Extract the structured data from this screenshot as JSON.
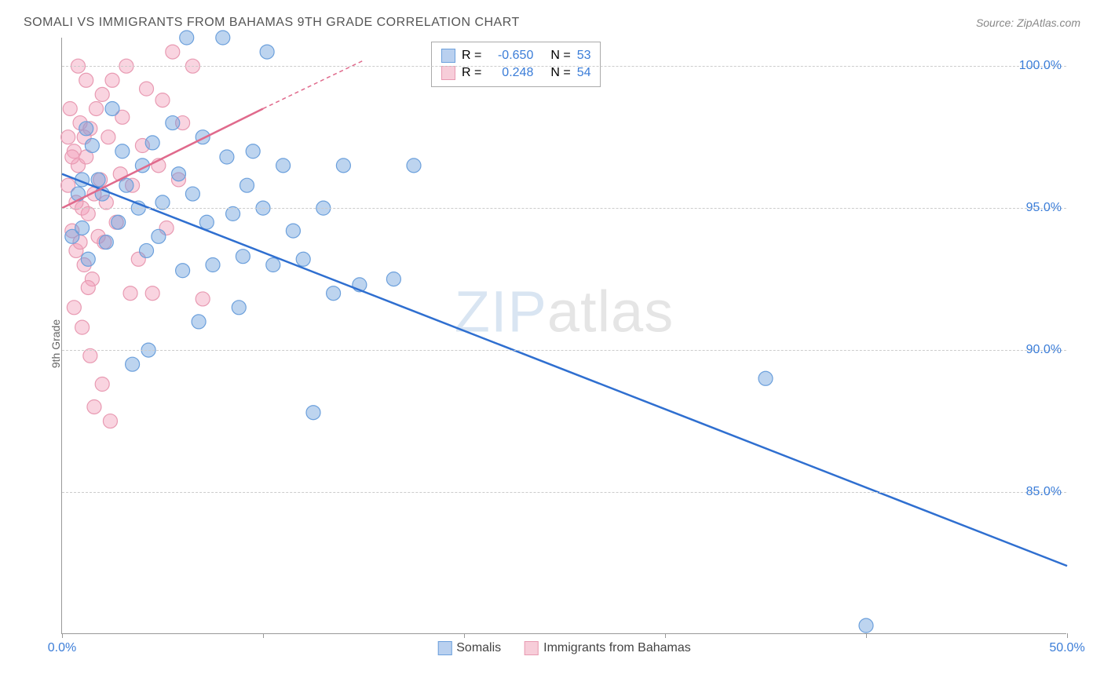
{
  "title": "SOMALI VS IMMIGRANTS FROM BAHAMAS 9TH GRADE CORRELATION CHART",
  "source": "Source: ZipAtlas.com",
  "ylabel": "9th Grade",
  "watermark": {
    "bold": "ZIP",
    "thin": "atlas"
  },
  "chart": {
    "type": "scatter+regression",
    "xlim": [
      0,
      50
    ],
    "ylim": [
      80,
      101
    ],
    "xticks": [
      0,
      10,
      20,
      30,
      40,
      50
    ],
    "xticks_labeled": {
      "0": "0.0%",
      "50": "50.0%"
    },
    "yticks": [
      85,
      90,
      95,
      100
    ],
    "ytick_labels": [
      "85.0%",
      "90.0%",
      "95.0%",
      "100.0%"
    ],
    "grid_color": "#cccccc",
    "axis_color": "#999999",
    "background": "#ffffff",
    "label_color": "#3b7dd8",
    "series": [
      {
        "name": "Somalis",
        "color_fill": "rgba(108,160,220,0.45)",
        "color_stroke": "#6ca0dc",
        "swatch_fill": "#b9d0ef",
        "swatch_border": "#6ca0dc",
        "line_color": "#2f6fd0",
        "R": "-0.650",
        "N": "53",
        "marker_r": 9,
        "line": {
          "x1": 0,
          "y1": 96.2,
          "x2": 50,
          "y2": 82.4
        },
        "points": [
          [
            0.5,
            94.0
          ],
          [
            0.8,
            95.5
          ],
          [
            1.0,
            96.0
          ],
          [
            1.0,
            94.3
          ],
          [
            1.2,
            97.8
          ],
          [
            1.3,
            93.2
          ],
          [
            1.5,
            97.2
          ],
          [
            1.8,
            96.0
          ],
          [
            2.0,
            95.5
          ],
          [
            2.2,
            93.8
          ],
          [
            2.5,
            98.5
          ],
          [
            2.8,
            94.5
          ],
          [
            3.0,
            97.0
          ],
          [
            3.2,
            95.8
          ],
          [
            3.5,
            89.5
          ],
          [
            3.8,
            95.0
          ],
          [
            4.0,
            96.5
          ],
          [
            4.2,
            93.5
          ],
          [
            4.5,
            97.3
          ],
          [
            4.8,
            94.0
          ],
          [
            5.0,
            95.2
          ],
          [
            5.5,
            98.0
          ],
          [
            5.8,
            96.2
          ],
          [
            6.0,
            92.8
          ],
          [
            6.2,
            101.0
          ],
          [
            6.5,
            95.5
          ],
          [
            7.0,
            97.5
          ],
          [
            7.5,
            93.0
          ],
          [
            8.0,
            101.0
          ],
          [
            8.2,
            96.8
          ],
          [
            8.5,
            94.8
          ],
          [
            9.0,
            93.3
          ],
          [
            9.5,
            97.0
          ],
          [
            10.0,
            95.0
          ],
          [
            10.2,
            100.5
          ],
          [
            10.5,
            93.0
          ],
          [
            11.0,
            96.5
          ],
          [
            11.5,
            94.2
          ],
          [
            12.0,
            93.2
          ],
          [
            12.5,
            87.8
          ],
          [
            13.0,
            95.0
          ],
          [
            13.5,
            92.0
          ],
          [
            14.0,
            96.5
          ],
          [
            14.8,
            92.3
          ],
          [
            16.5,
            92.5
          ],
          [
            17.5,
            96.5
          ],
          [
            35.0,
            89.0
          ],
          [
            40.0,
            80.3
          ],
          [
            8.8,
            91.5
          ],
          [
            6.8,
            91.0
          ],
          [
            4.3,
            90.0
          ],
          [
            9.2,
            95.8
          ],
          [
            7.2,
            94.5
          ]
        ]
      },
      {
        "name": "Immigrants from Bahamas",
        "color_fill": "rgba(242,160,186,0.45)",
        "color_stroke": "#e89ab2",
        "swatch_fill": "#f7cdd9",
        "swatch_border": "#e89ab2",
        "line_color": "#e06a8c",
        "R": "0.248",
        "N": "54",
        "marker_r": 9,
        "line": {
          "x1": 0,
          "y1": 95.0,
          "x2": 10,
          "y2": 98.5
        },
        "line_extend": {
          "x1": 10,
          "y1": 98.5,
          "x2": 15,
          "y2": 100.2
        },
        "points": [
          [
            0.3,
            95.8
          ],
          [
            0.5,
            94.2
          ],
          [
            0.6,
            97.0
          ],
          [
            0.7,
            93.5
          ],
          [
            0.8,
            96.5
          ],
          [
            0.9,
            98.0
          ],
          [
            1.0,
            95.0
          ],
          [
            1.1,
            93.0
          ],
          [
            1.2,
            96.8
          ],
          [
            1.3,
            94.8
          ],
          [
            1.4,
            97.8
          ],
          [
            1.5,
            92.5
          ],
          [
            1.6,
            95.5
          ],
          [
            1.7,
            98.5
          ],
          [
            1.8,
            94.0
          ],
          [
            1.9,
            96.0
          ],
          [
            2.0,
            99.0
          ],
          [
            2.1,
            93.8
          ],
          [
            2.2,
            95.2
          ],
          [
            2.3,
            97.5
          ],
          [
            2.5,
            99.5
          ],
          [
            2.7,
            94.5
          ],
          [
            2.9,
            96.2
          ],
          [
            3.0,
            98.2
          ],
          [
            3.2,
            100.0
          ],
          [
            3.5,
            95.8
          ],
          [
            3.8,
            93.2
          ],
          [
            4.0,
            97.2
          ],
          [
            4.2,
            99.2
          ],
          [
            4.5,
            92.0
          ],
          [
            4.8,
            96.5
          ],
          [
            5.0,
            98.8
          ],
          [
            5.2,
            94.3
          ],
          [
            5.5,
            100.5
          ],
          [
            5.8,
            96.0
          ],
          [
            6.0,
            98.0
          ],
          [
            6.5,
            100.0
          ],
          [
            7.0,
            91.8
          ],
          [
            1.0,
            90.8
          ],
          [
            1.4,
            89.8
          ],
          [
            2.0,
            88.8
          ],
          [
            0.6,
            91.5
          ],
          [
            0.4,
            98.5
          ],
          [
            0.8,
            100.0
          ],
          [
            1.2,
            99.5
          ],
          [
            3.4,
            92.0
          ],
          [
            0.5,
            96.8
          ],
          [
            0.7,
            95.2
          ],
          [
            0.9,
            93.8
          ],
          [
            1.1,
            97.5
          ],
          [
            1.3,
            92.2
          ],
          [
            1.6,
            88.0
          ],
          [
            2.4,
            87.5
          ],
          [
            0.3,
            97.5
          ]
        ]
      }
    ]
  },
  "legend_top": {
    "rows": [
      {
        "series_idx": 0,
        "r_label": "R =",
        "n_label": "N ="
      },
      {
        "series_idx": 1,
        "r_label": "R =",
        "n_label": "N ="
      }
    ]
  },
  "legend_bottom": [
    {
      "series_idx": 0
    },
    {
      "series_idx": 1
    }
  ]
}
